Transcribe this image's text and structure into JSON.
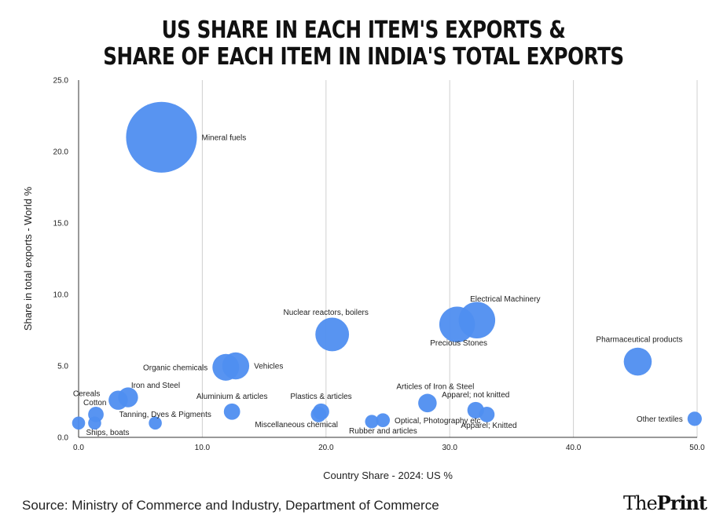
{
  "title_line1": "US SHARE IN EACH ITEM'S EXPORTS &",
  "title_line2": "SHARE OF EACH ITEM IN INDIA'S TOTAL EXPORTS",
  "source": "Source: Ministry of Commerce and Industry, Department of Commerce",
  "brand_prefix": "The",
  "brand_suffix": "Print",
  "colors": {
    "bubble": "#4f8ef0",
    "grid": "#d0d0d0",
    "axis": "#333333",
    "text": "#222222"
  },
  "chart_data": {
    "type": "scatter",
    "subtype": "bubble",
    "xlabel": "Country Share - 2024: US %",
    "ylabel": "Share in total exports - World %",
    "xlim": [
      0,
      50
    ],
    "ylim": [
      0,
      25
    ],
    "xticks": [
      "0.0",
      "10.0",
      "20.0",
      "30.0",
      "40.0",
      "50.0"
    ],
    "yticks": [
      "0.0",
      "5.0",
      "10.0",
      "15.0",
      "20.0",
      "25.0"
    ],
    "xtick_values": [
      0,
      10,
      20,
      30,
      40,
      50
    ],
    "ytick_values": [
      0,
      5,
      10,
      15,
      20,
      25
    ],
    "points": [
      {
        "label": "Mineral fuels",
        "x": 6.7,
        "y": 21.0,
        "size": 21.0,
        "label_pos": "right"
      },
      {
        "label": "Electrical Machinery",
        "x": 32.2,
        "y": 8.2,
        "size": 8.2,
        "label_pos": "above"
      },
      {
        "label": "Precious Stones",
        "x": 30.6,
        "y": 7.9,
        "size": 7.9,
        "label_pos": "below"
      },
      {
        "label": "Nuclear reactors, boilers",
        "x": 20.5,
        "y": 7.2,
        "size": 7.2,
        "label_pos": "above"
      },
      {
        "label": "Pharmaceutical products",
        "x": 45.2,
        "y": 5.3,
        "size": 5.3,
        "label_pos": "above"
      },
      {
        "label": "Organic chemicals",
        "x": 11.9,
        "y": 4.9,
        "size": 4.9,
        "label_pos": "left"
      },
      {
        "label": "Vehicles",
        "x": 12.7,
        "y": 5.0,
        "size": 5.0,
        "label_pos": "right"
      },
      {
        "label": "Iron and Steel",
        "x": 4.0,
        "y": 2.8,
        "size": 2.8,
        "label_pos": "above"
      },
      {
        "label": "Cereals",
        "x": 3.2,
        "y": 2.6,
        "size": 2.6,
        "label_pos": "above-left"
      },
      {
        "label": "Articles of Iron & Steel",
        "x": 28.2,
        "y": 2.4,
        "size": 2.4,
        "label_pos": "above"
      },
      {
        "label": "Apparel; not knitted",
        "x": 32.1,
        "y": 1.9,
        "size": 1.9,
        "label_pos": "above"
      },
      {
        "label": "Aluminium & articles",
        "x": 12.4,
        "y": 1.8,
        "size": 1.8,
        "label_pos": "above"
      },
      {
        "label": "Plastics & articles",
        "x": 19.6,
        "y": 1.8,
        "size": 1.8,
        "label_pos": "above"
      },
      {
        "label": "Miscellaneous chemical",
        "x": 19.4,
        "y": 1.6,
        "size": 1.6,
        "label_pos": "below"
      },
      {
        "label": "Cotton",
        "x": 1.4,
        "y": 1.6,
        "size": 1.6,
        "label_pos": "above"
      },
      {
        "label": "Apparel; Knitted",
        "x": 33.0,
        "y": 1.6,
        "size": 1.6,
        "label_pos": "below"
      },
      {
        "label": "Other textiles",
        "x": 49.8,
        "y": 1.3,
        "size": 1.3,
        "label_pos": "left"
      },
      {
        "label": "Optical, Photography etc",
        "x": 24.6,
        "y": 1.2,
        "size": 1.2,
        "label_pos": "right"
      },
      {
        "label": "Rubber and articles",
        "x": 23.7,
        "y": 1.1,
        "size": 1.1,
        "label_pos": "below"
      },
      {
        "label": "Tanning, Dyes & Pigments",
        "x": 6.2,
        "y": 1.0,
        "size": 1.0,
        "label_pos": "above"
      },
      {
        "label": "Ships, boats",
        "x": 1.3,
        "y": 1.0,
        "size": 1.0,
        "label_pos": "below"
      },
      {
        "label": "",
        "x": 0.0,
        "y": 1.0,
        "size": 1.0,
        "label_pos": "none"
      }
    ]
  }
}
